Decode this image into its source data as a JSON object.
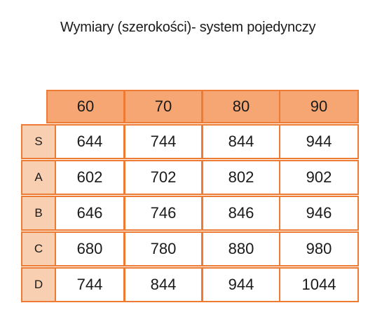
{
  "title": "Wymiary (szerokości)- system pojedynczy",
  "table": {
    "columns": [
      "60",
      "70",
      "80",
      "90"
    ],
    "rows": [
      {
        "label": "S",
        "values": [
          "644",
          "744",
          "844",
          "944"
        ]
      },
      {
        "label": "A",
        "values": [
          "602",
          "702",
          "802",
          "902"
        ]
      },
      {
        "label": "B",
        "values": [
          "646",
          "746",
          "846",
          "946"
        ]
      },
      {
        "label": "C",
        "values": [
          "680",
          "780",
          "880",
          "980"
        ]
      },
      {
        "label": "D",
        "values": [
          "744",
          "844",
          "944",
          "1044"
        ]
      }
    ]
  },
  "colors": {
    "border": "#ee7b33",
    "header_fill": "#f5a673",
    "row_label_fill": "#f9cfb1"
  }
}
